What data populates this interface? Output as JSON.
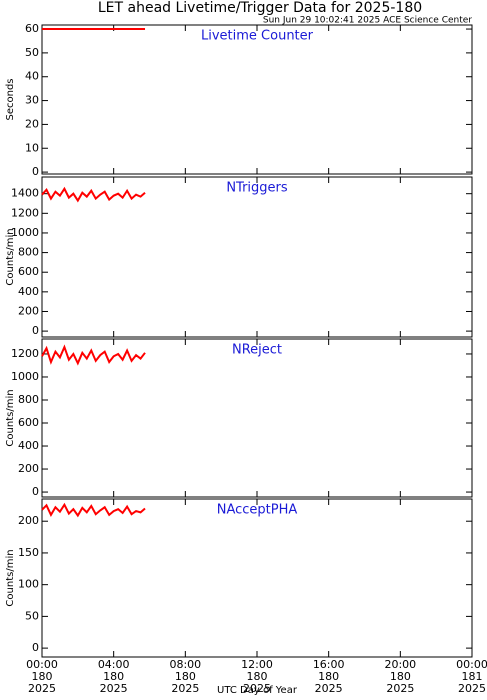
{
  "title": "LET ahead Livetime/Trigger Data for 2025-180",
  "subtitle": "Sun Jun 29 10:02:41 2025 ACE Science Center",
  "xlabel": "UTC Day of Year",
  "chart_data": [
    {
      "type": "line",
      "title": "Livetime Counter",
      "ylabel": "Seconds",
      "color": "#ff0000",
      "x": [
        0,
        0.25,
        0.5,
        0.75,
        1,
        1.25,
        1.5,
        1.75,
        2,
        2.25,
        2.5,
        2.75,
        3,
        3.25,
        3.5,
        3.75,
        4,
        4.25,
        4.5,
        4.75,
        5,
        5.25,
        5.5,
        5.75
      ],
      "values": [
        60,
        60,
        60,
        60,
        60,
        60,
        60,
        60,
        60,
        60,
        60,
        60,
        60,
        60,
        60,
        60,
        60,
        60,
        60,
        60,
        60,
        60,
        60,
        60
      ],
      "xlim": [
        0,
        24
      ],
      "ylim": [
        -0.8,
        61.7
      ],
      "yticks": [
        0,
        10,
        20,
        30,
        40,
        50,
        60
      ]
    },
    {
      "type": "line",
      "title": "NTriggers",
      "ylabel": "Counts/min",
      "color": "#ff0000",
      "x": [
        0,
        0.25,
        0.5,
        0.75,
        1,
        1.25,
        1.5,
        1.75,
        2,
        2.25,
        2.5,
        2.75,
        3,
        3.25,
        3.5,
        3.75,
        4,
        4.25,
        4.5,
        4.75,
        5,
        5.25,
        5.5,
        5.75
      ],
      "values": [
        1390,
        1440,
        1350,
        1420,
        1380,
        1450,
        1360,
        1400,
        1330,
        1410,
        1370,
        1430,
        1350,
        1390,
        1420,
        1340,
        1380,
        1400,
        1360,
        1430,
        1350,
        1390,
        1370,
        1410
      ],
      "xlim": [
        0,
        24
      ],
      "ylim": [
        -60,
        1570
      ],
      "yticks": [
        0,
        200,
        400,
        600,
        800,
        1000,
        1200,
        1400
      ]
    },
    {
      "type": "line",
      "title": "NReject",
      "ylabel": "Counts/min",
      "color": "#ff0000",
      "x": [
        0,
        0.25,
        0.5,
        0.75,
        1,
        1.25,
        1.5,
        1.75,
        2,
        2.25,
        2.5,
        2.75,
        3,
        3.25,
        3.5,
        3.75,
        4,
        4.25,
        4.5,
        4.75,
        5,
        5.25,
        5.5,
        5.75
      ],
      "values": [
        1180,
        1250,
        1130,
        1220,
        1170,
        1260,
        1150,
        1200,
        1120,
        1210,
        1160,
        1230,
        1140,
        1190,
        1220,
        1130,
        1180,
        1200,
        1150,
        1230,
        1140,
        1190,
        1160,
        1210
      ],
      "xlim": [
        0,
        24
      ],
      "ylim": [
        -43,
        1330
      ],
      "yticks": [
        0,
        200,
        400,
        600,
        800,
        1000,
        1200
      ]
    },
    {
      "type": "line",
      "title": "NAcceptPHA",
      "ylabel": "Counts/min",
      "color": "#ff0000",
      "x": [
        0,
        0.25,
        0.5,
        0.75,
        1,
        1.25,
        1.5,
        1.75,
        2,
        2.25,
        2.5,
        2.75,
        3,
        3.25,
        3.5,
        3.75,
        4,
        4.25,
        4.5,
        4.75,
        5,
        5.25,
        5.5,
        5.75
      ],
      "values": [
        218,
        225,
        210,
        222,
        215,
        226,
        212,
        219,
        209,
        221,
        214,
        224,
        211,
        217,
        222,
        210,
        216,
        219,
        213,
        223,
        211,
        216,
        214,
        220
      ],
      "xlim": [
        0,
        24
      ],
      "ylim": [
        -14,
        235
      ],
      "yticks": [
        0,
        50,
        100,
        150,
        200
      ],
      "xticks": [
        {
          "value": 0,
          "label": "00:00",
          "doy": "180",
          "year": "2025"
        },
        {
          "value": 4,
          "label": "04:00",
          "doy": "180",
          "year": "2025"
        },
        {
          "value": 8,
          "label": "08:00",
          "doy": "180",
          "year": "2025"
        },
        {
          "value": 12,
          "label": "12:00",
          "doy": "180",
          "year": "2025"
        },
        {
          "value": 16,
          "label": "16:00",
          "doy": "180",
          "year": "2025"
        },
        {
          "value": 20,
          "label": "20:00",
          "doy": "180",
          "year": "2025"
        },
        {
          "value": 24,
          "label": "00:00",
          "doy": "181",
          "year": "2025"
        }
      ]
    }
  ]
}
